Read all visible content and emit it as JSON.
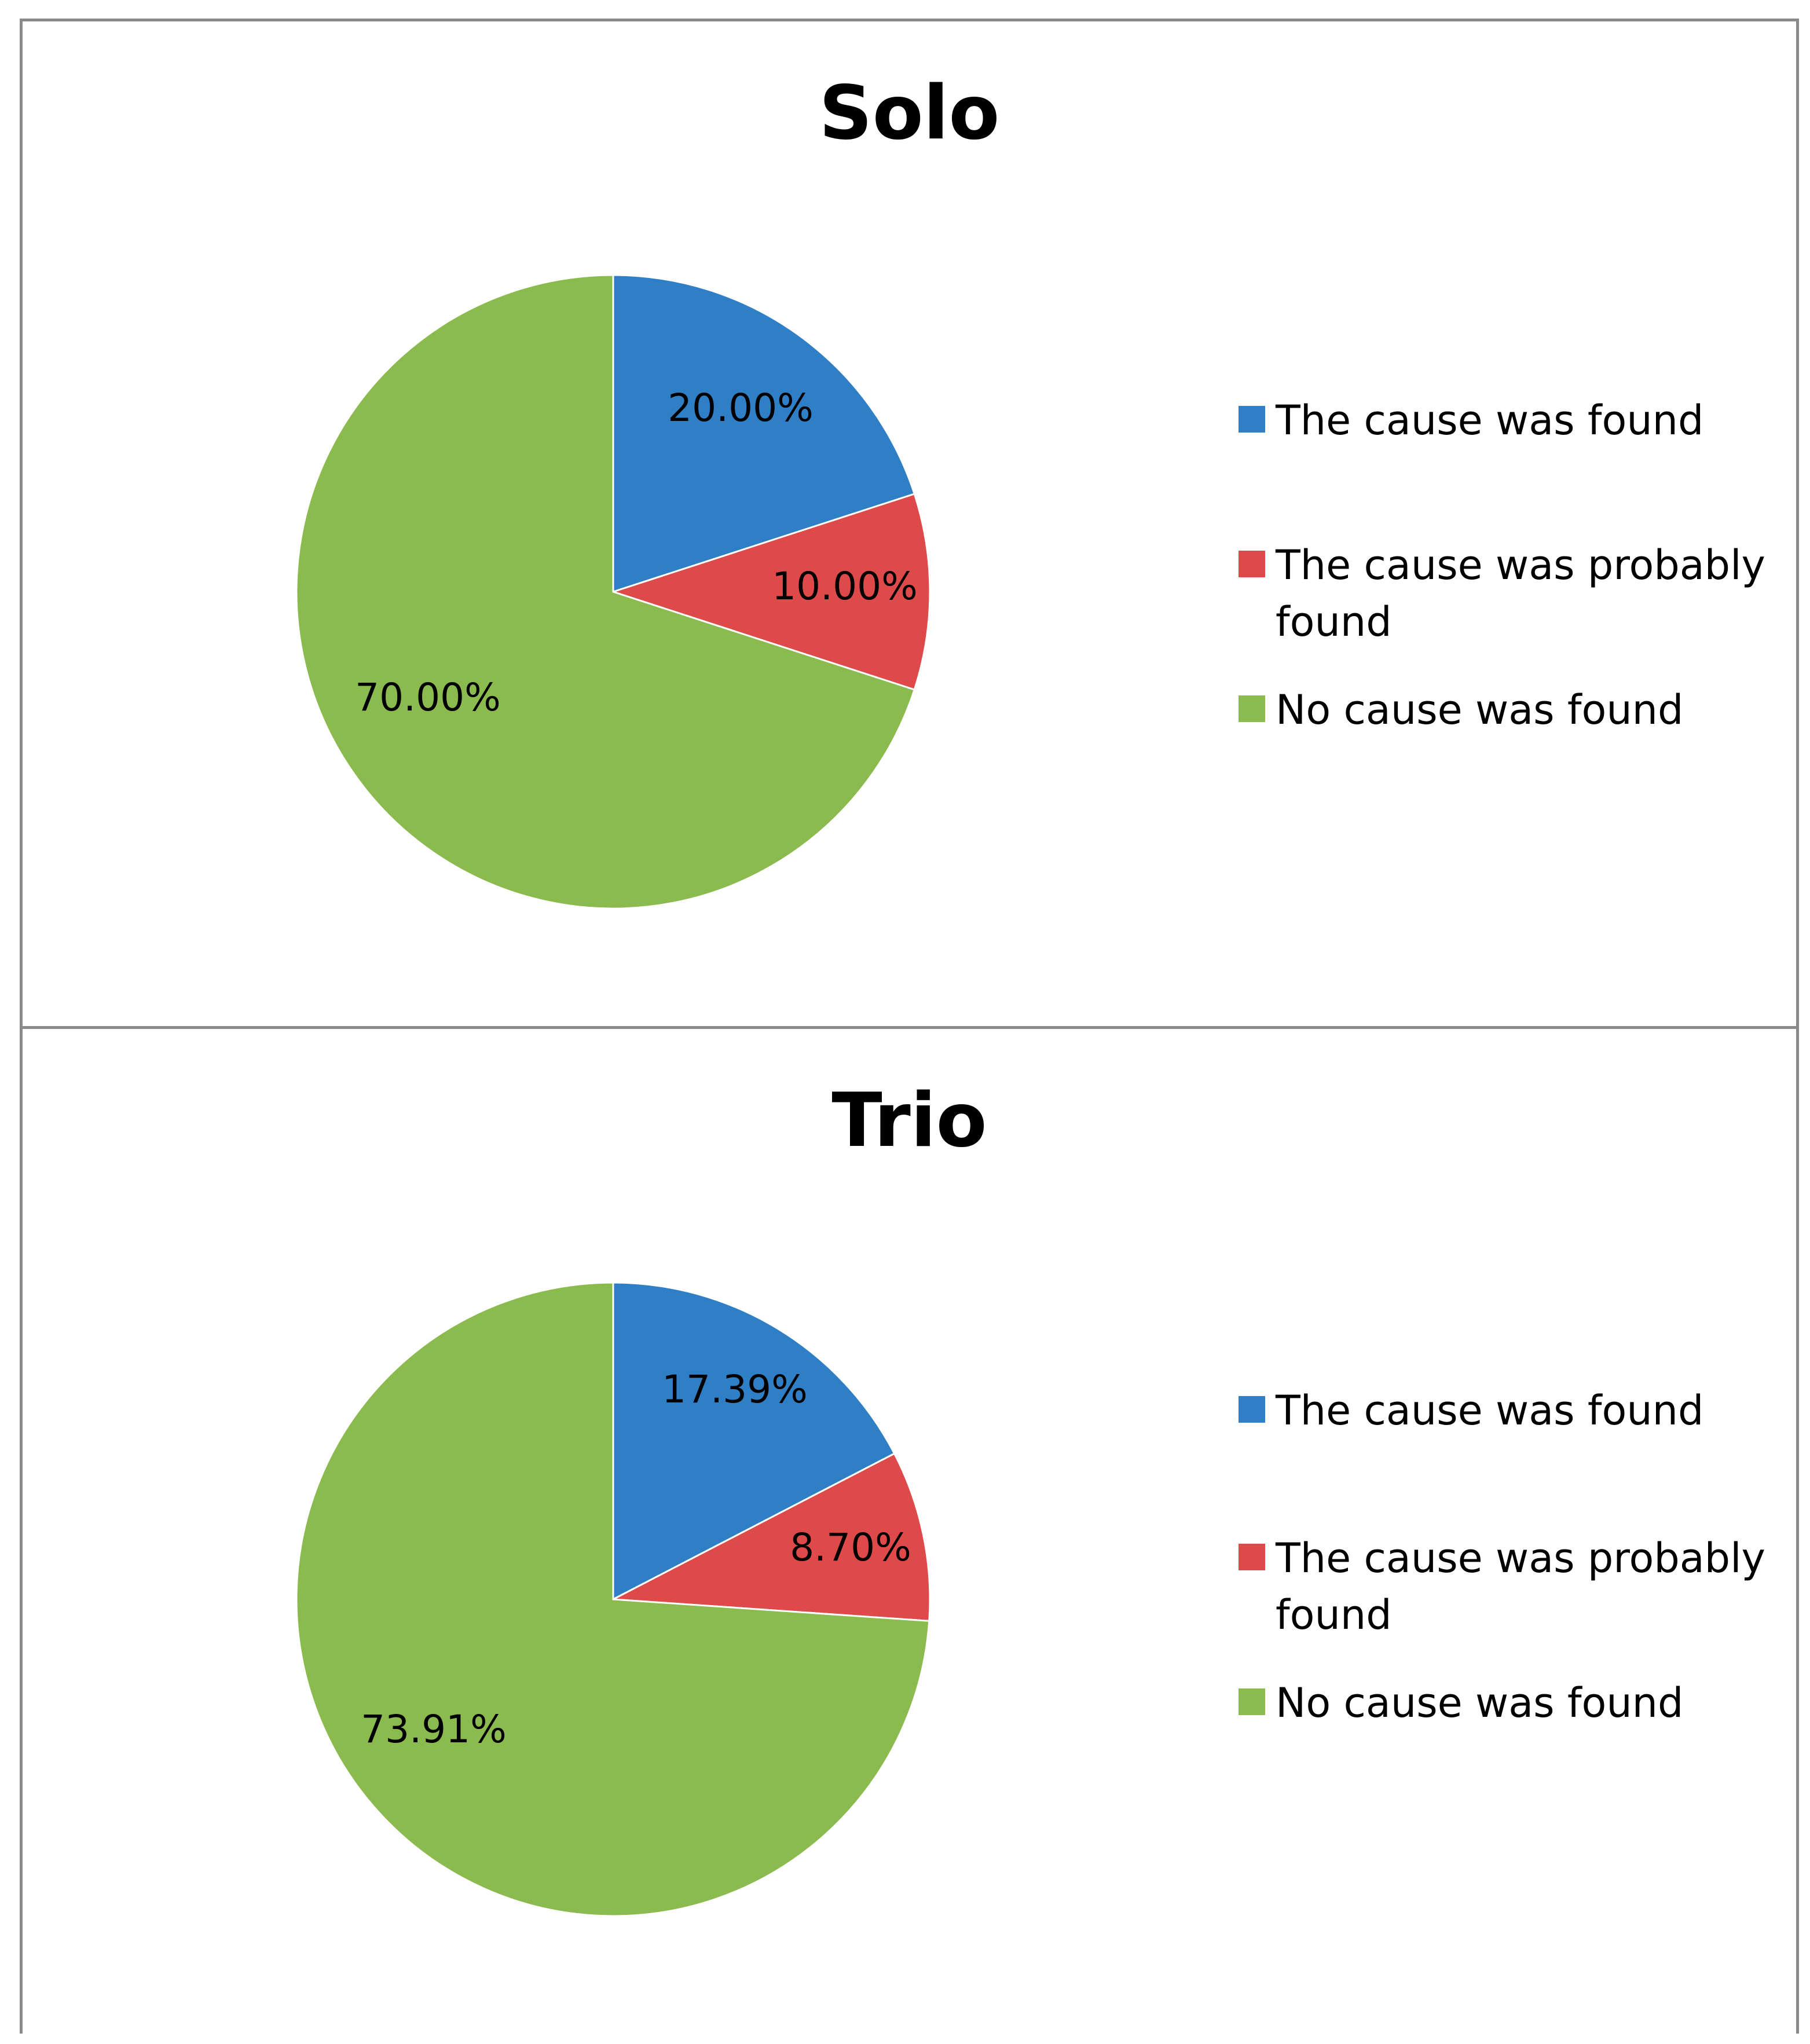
{
  "chart_data": [
    {
      "type": "pie",
      "title": "Solo",
      "categories": [
        "The cause was found",
        "The cause was probably found",
        "No cause was found"
      ],
      "values": [
        20.0,
        10.0,
        70.0
      ],
      "data_labels": [
        "20.00%",
        "10.00%",
        "70.00%"
      ],
      "colors": [
        "#2f7fc6",
        "#de4a4a",
        "#8bbb4e"
      ],
      "legend_position": "right",
      "start_angle": "12 o'clock, clockwise"
    },
    {
      "type": "pie",
      "title": "Trio",
      "categories": [
        "The cause was found",
        "The cause was probably found",
        "No cause was found"
      ],
      "values": [
        17.39,
        8.7,
        73.91
      ],
      "data_labels": [
        "17.39%",
        "8.70%",
        "73.91%"
      ],
      "colors": [
        "#2f7fc6",
        "#de4a4a",
        "#8bbb4e"
      ],
      "legend_position": "right",
      "start_angle": "12 o'clock, clockwise"
    }
  ]
}
